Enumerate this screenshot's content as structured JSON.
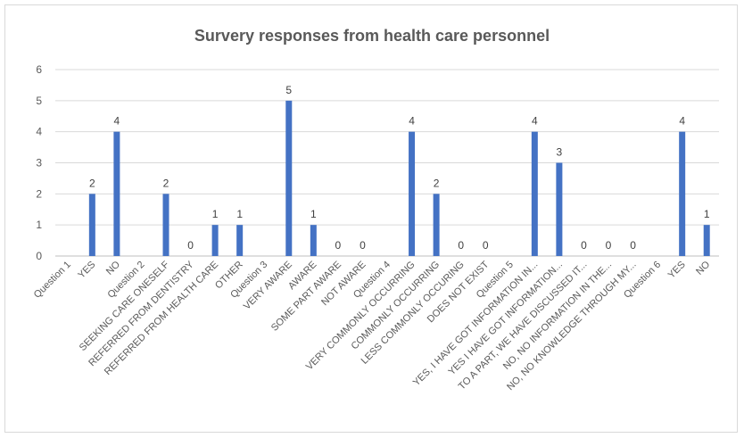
{
  "chart_data": {
    "type": "bar",
    "title": "Survery responses from health care personnel",
    "xlabel": "",
    "ylabel": "",
    "ylim": [
      0,
      6
    ],
    "yticks": [
      0,
      1,
      2,
      3,
      4,
      5,
      6
    ],
    "grid": true,
    "legend": "none",
    "bar_color": "#4472c4",
    "categories": [
      "Question 1",
      "YES",
      "NO",
      "Question 2",
      "SEEKING CARE ONESELF",
      "REFERRED FROM DENTISTRY",
      "REFERRED FROM HEALTH CARE",
      "OTHER",
      "Question 3",
      "VERY AWARE",
      "AWARE",
      "SOME PART AWARE",
      "NOT AWARE",
      "Question 4",
      "VERY COMMONLY OCCURRING",
      "COMMONLY OCCURRING",
      "LESS COMMONLY OCCURING",
      "DOES NOT EXIST",
      "Question 5",
      "YES, I HAVE GOT INFORMATION IN...",
      "YES I HAVE GOT INFORMATION...",
      "TO A PART, WE HAVE DISCUSSED IT...",
      "NO, NO INFORMATION IN THE...",
      "NO, NO KNOWLEDGE THROUGH MY...",
      "Question 6",
      "YES",
      "NO"
    ],
    "values": [
      null,
      2,
      4,
      null,
      2,
      0,
      1,
      1,
      null,
      5,
      1,
      0,
      0,
      null,
      4,
      2,
      0,
      0,
      null,
      4,
      3,
      0,
      0,
      0,
      null,
      4,
      1
    ]
  }
}
